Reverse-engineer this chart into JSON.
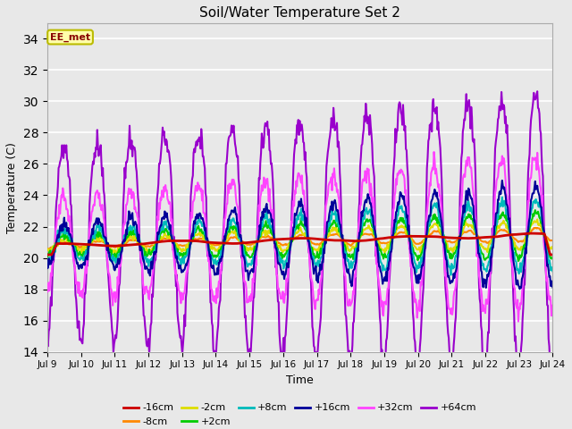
{
  "title": "Soil/Water Temperature Set 2",
  "xlabel": "Time",
  "ylabel": "Temperature (C)",
  "ylim": [
    14,
    35
  ],
  "yticks": [
    14,
    16,
    18,
    20,
    22,
    24,
    26,
    28,
    30,
    32,
    34
  ],
  "xtick_labels": [
    "Jul 9",
    "Jul 10",
    "Jul 11",
    "Jul 12",
    "Jul 13",
    "Jul 14",
    "Jul 15",
    "Jul 16",
    "Jul 17",
    "Jul 18",
    "Jul 19",
    "Jul 20",
    "Jul 21",
    "Jul 22",
    "Jul 23",
    "Jul 24"
  ],
  "annotation_text": "EE_met",
  "annotation_bg": "#ffffaa",
  "annotation_border": "#bbbb00",
  "annotation_text_color": "#880000",
  "background_color": "#e8e8e8",
  "series": [
    {
      "label": "-16cm",
      "color": "#cc0000",
      "lw": 2.0,
      "zorder": 5
    },
    {
      "label": "-8cm",
      "color": "#ff8800",
      "lw": 1.5,
      "zorder": 4
    },
    {
      "label": "-2cm",
      "color": "#dddd00",
      "lw": 1.5,
      "zorder": 4
    },
    {
      "label": "+2cm",
      "color": "#00cc00",
      "lw": 1.5,
      "zorder": 4
    },
    {
      "label": "+8cm",
      "color": "#00bbbb",
      "lw": 1.5,
      "zorder": 4
    },
    {
      "label": "+16cm",
      "color": "#000099",
      "lw": 1.5,
      "zorder": 4
    },
    {
      "label": "+32cm",
      "color": "#ff44ff",
      "lw": 1.5,
      "zorder": 3
    },
    {
      "label": "+64cm",
      "color": "#9900cc",
      "lw": 1.5,
      "zorder": 2
    }
  ]
}
